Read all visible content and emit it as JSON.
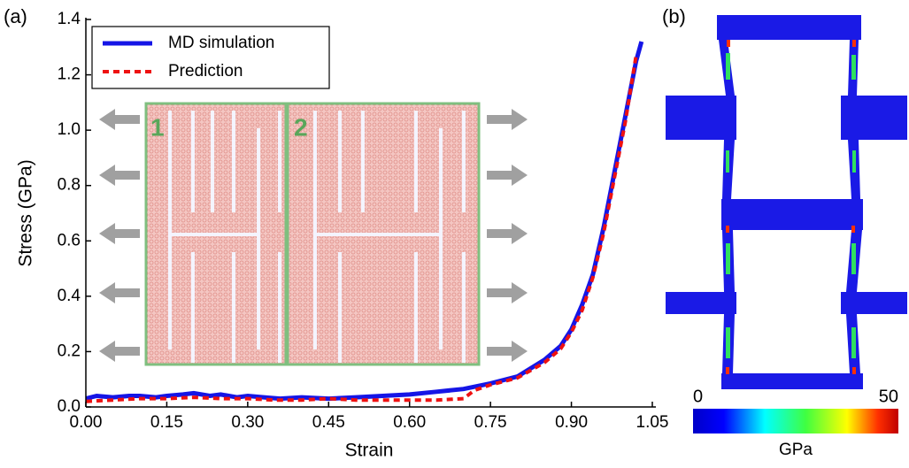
{
  "panel_labels": [
    "(a)",
    "(b)"
  ],
  "chart_data": {
    "type": "line",
    "xlabel": "Strain",
    "ylabel": "Stress (GPa)",
    "xlim": [
      0,
      1.05
    ],
    "ylim": [
      0,
      1.4
    ],
    "xticks": [
      {
        "value": 0,
        "label": "0.00"
      },
      0.15,
      {
        "value": 0.3,
        "label": "0.30"
      },
      0.45,
      {
        "value": 0.6,
        "label": "0.60"
      },
      0.75,
      {
        "value": 0.9,
        "label": "0.90"
      },
      1.05
    ],
    "yticks": [
      {
        "value": 0,
        "label": "0.0"
      },
      0.2,
      0.4,
      0.6,
      0.8,
      {
        "value": 1,
        "label": "1.0"
      },
      1.2,
      1.4
    ],
    "legend": "upper left",
    "series": [
      {
        "name": "MD simulation",
        "color": "#1515e6",
        "style": "solid",
        "x": [
          0,
          0.02,
          0.05,
          0.08,
          0.1,
          0.13,
          0.15,
          0.18,
          0.2,
          0.23,
          0.25,
          0.28,
          0.3,
          0.33,
          0.36,
          0.4,
          0.45,
          0.5,
          0.55,
          0.6,
          0.65,
          0.7,
          0.75,
          0.8,
          0.85,
          0.88,
          0.9,
          0.92,
          0.94,
          0.96,
          0.98,
          1.0,
          1.02,
          1.03
        ],
        "values": [
          0.03,
          0.04,
          0.035,
          0.04,
          0.04,
          0.035,
          0.04,
          0.045,
          0.05,
          0.04,
          0.045,
          0.035,
          0.04,
          0.035,
          0.03,
          0.035,
          0.03,
          0.035,
          0.04,
          0.045,
          0.055,
          0.065,
          0.085,
          0.11,
          0.17,
          0.22,
          0.28,
          0.37,
          0.48,
          0.65,
          0.85,
          1.05,
          1.25,
          1.32
        ]
      },
      {
        "name": "Prediction",
        "color": "#ee1111",
        "style": "dashed",
        "x": [
          0,
          0.05,
          0.1,
          0.15,
          0.2,
          0.25,
          0.3,
          0.35,
          0.4,
          0.45,
          0.5,
          0.55,
          0.6,
          0.65,
          0.7,
          0.72,
          0.75,
          0.8,
          0.85,
          0.88,
          0.9,
          0.92,
          0.94,
          0.96,
          0.98,
          1.0,
          1.02
        ],
        "values": [
          0.02,
          0.025,
          0.03,
          0.03,
          0.035,
          0.03,
          0.03,
          0.025,
          0.025,
          0.03,
          0.025,
          0.025,
          0.025,
          0.025,
          0.03,
          0.06,
          0.08,
          0.105,
          0.16,
          0.21,
          0.27,
          0.35,
          0.47,
          0.63,
          0.83,
          1.03,
          1.27
        ]
      }
    ]
  },
  "inset": {
    "labels": [
      "1",
      "2"
    ]
  },
  "colorbar": {
    "ticks": [
      0,
      50
    ],
    "lim": [
      0,
      50
    ],
    "label": "GPa"
  }
}
